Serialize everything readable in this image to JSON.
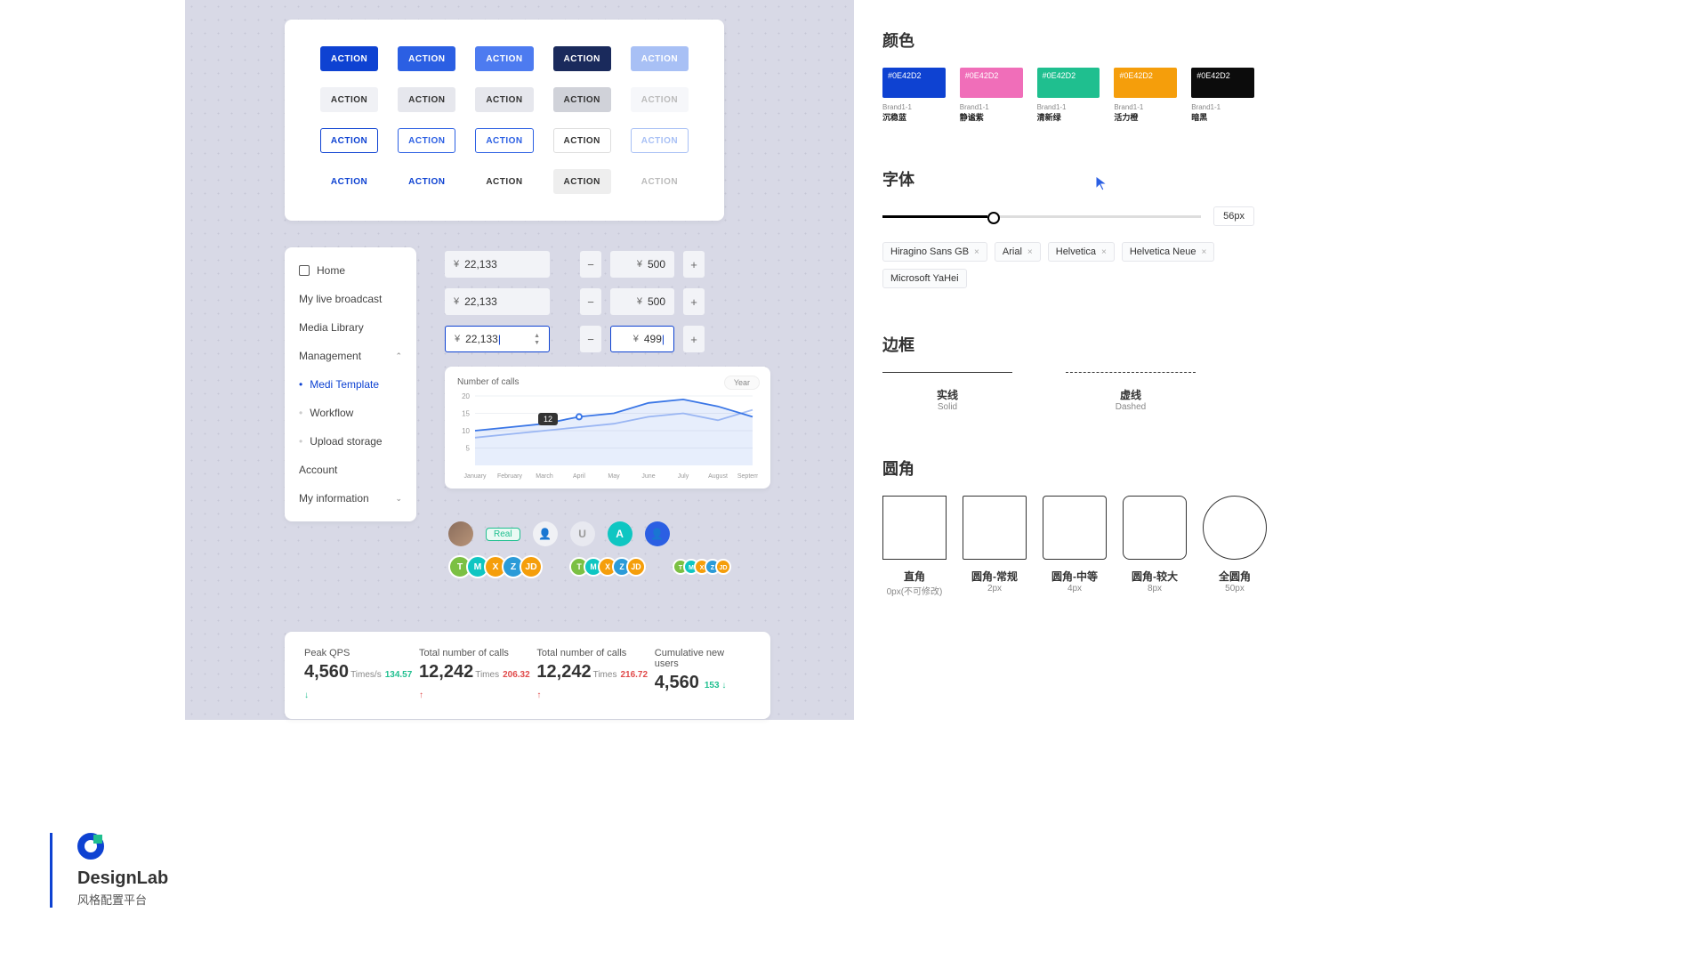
{
  "logo": {
    "title": "DesignLab",
    "subtitle": "风格配置平台"
  },
  "action_label": "ACTION",
  "sidebar": {
    "home": "Home",
    "items": [
      "My live broadcast",
      "Media Library",
      "Management",
      "Medi Template",
      "Workflow",
      "Upload storage",
      "Account",
      "My information"
    ]
  },
  "inputs": {
    "currency": "¥",
    "v1": "22,133",
    "v2": "500",
    "v3": "22,133",
    "v4": "500",
    "v5": "22,133",
    "v6": "499"
  },
  "chart": {
    "title": "Number of calls",
    "pill": "Year",
    "yticks": [
      "20",
      "15",
      "10",
      "5"
    ],
    "months": [
      "January",
      "February",
      "March",
      "April",
      "May",
      "June",
      "July",
      "August",
      "September"
    ],
    "series1": [
      10,
      11,
      12,
      14,
      15,
      18,
      19,
      17,
      14
    ],
    "series2": [
      8,
      9,
      10,
      11,
      12,
      14,
      15,
      13,
      16
    ],
    "tooltip": "12",
    "colors": {
      "s1": "#3a76e6",
      "s2": "#a8c0f5",
      "grid": "#eef0f4",
      "axis": "#666"
    }
  },
  "avatars": {
    "real": "Real",
    "letters": {
      "u": "U",
      "a": "A"
    },
    "stack": [
      "T",
      "M",
      "X",
      "Z",
      "JD"
    ],
    "stack_colors": [
      "#7bc043",
      "#0fc6c2",
      "#f59e0b",
      "#2b9bd8",
      "#f59e0b"
    ]
  },
  "stats": [
    {
      "label": "Peak QPS",
      "value": "4,560",
      "unit": "Times/s",
      "delta": "134.57",
      "dir": "dn"
    },
    {
      "label": "Total number of calls",
      "value": "12,242",
      "unit": "Times",
      "delta": "206.32",
      "dir": "up"
    },
    {
      "label": "Total number of calls",
      "value": "12,242",
      "unit": "Times",
      "delta": "216.72",
      "dir": "up"
    },
    {
      "label": "Cumulative new users",
      "value": "4,560",
      "unit": "",
      "delta": "153",
      "dir": "dn"
    }
  ],
  "right": {
    "color_h": "颜色",
    "swatches": [
      {
        "hex": "#0E42D2",
        "bg": "#0e42d2",
        "cap": "Brand1-1",
        "name": "沉稳蓝"
      },
      {
        "hex": "#0E42D2",
        "bg": "#f06eb9",
        "cap": "Brand1-1",
        "name": "静谧紫"
      },
      {
        "hex": "#0E42D2",
        "bg": "#1fbf8f",
        "cap": "Brand1-1",
        "name": "清新绿"
      },
      {
        "hex": "#0E42D2",
        "bg": "#f59e0b",
        "cap": "Brand1-1",
        "name": "活力橙"
      },
      {
        "hex": "#0E42D2",
        "bg": "#0c0c0c",
        "cap": "Brand1-1",
        "name": "暗黑"
      }
    ],
    "font_h": "字体",
    "font_size": "56px",
    "fonts": [
      "Hiragino Sans GB",
      "Arial",
      "Helvetica",
      "Helvetica Neue",
      "Microsoft YaHei"
    ],
    "border_h": "边框",
    "borders": [
      {
        "cn": "实线",
        "en": "Solid"
      },
      {
        "cn": "虚线",
        "en": "Dashed"
      }
    ],
    "radius_h": "圆角",
    "radii": [
      {
        "cn": "直角",
        "en": "0px(不可修改)",
        "r": 0
      },
      {
        "cn": "圆角-常规",
        "en": "2px",
        "r": 2
      },
      {
        "cn": "圆角-中等",
        "en": "4px",
        "r": 4
      },
      {
        "cn": "圆角-较大",
        "en": "8px",
        "r": 8
      },
      {
        "cn": "全圆角",
        "en": "50px",
        "r": 50
      }
    ]
  }
}
